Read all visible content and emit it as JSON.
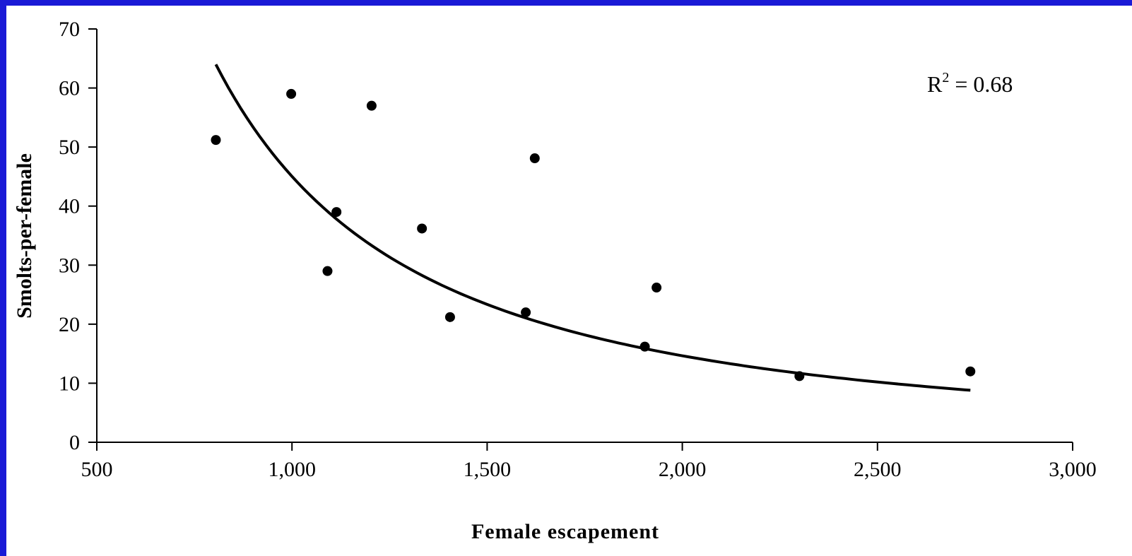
{
  "chart_data": {
    "type": "scatter",
    "xlabel": "Female escapement",
    "ylabel": "Smolts-per-female",
    "xlim": [
      500,
      3000
    ],
    "ylim": [
      0,
      70
    ],
    "x_ticks": [
      "500",
      "1,000",
      "1,500",
      "2,000",
      "2,500",
      "3,000"
    ],
    "y_ticks": [
      "0",
      "10",
      "20",
      "30",
      "40",
      "50",
      "60",
      "70"
    ],
    "grid": false,
    "annotation": {
      "text_main": "R",
      "superscript": "2",
      "text_rest": " = 0.68"
    },
    "points": [
      {
        "x": 805,
        "y": 51.2
      },
      {
        "x": 998,
        "y": 59.0
      },
      {
        "x": 1091,
        "y": 29.0
      },
      {
        "x": 1114,
        "y": 39.0
      },
      {
        "x": 1204,
        "y": 57.0
      },
      {
        "x": 1333,
        "y": 36.2
      },
      {
        "x": 1405,
        "y": 21.2
      },
      {
        "x": 1599,
        "y": 22.0
      },
      {
        "x": 1622,
        "y": 48.1
      },
      {
        "x": 1904,
        "y": 16.2
      },
      {
        "x": 1934,
        "y": 26.2
      },
      {
        "x": 2300,
        "y": 11.2
      },
      {
        "x": 2738,
        "y": 12.0
      }
    ],
    "trendline": {
      "type": "power",
      "x_range": [
        805,
        2738
      ],
      "coefficient": 3262000,
      "exponent": -1.62
    },
    "colors": {
      "background": "#ffffff",
      "frame": "#1a1ad6",
      "marks": "#000000"
    }
  }
}
